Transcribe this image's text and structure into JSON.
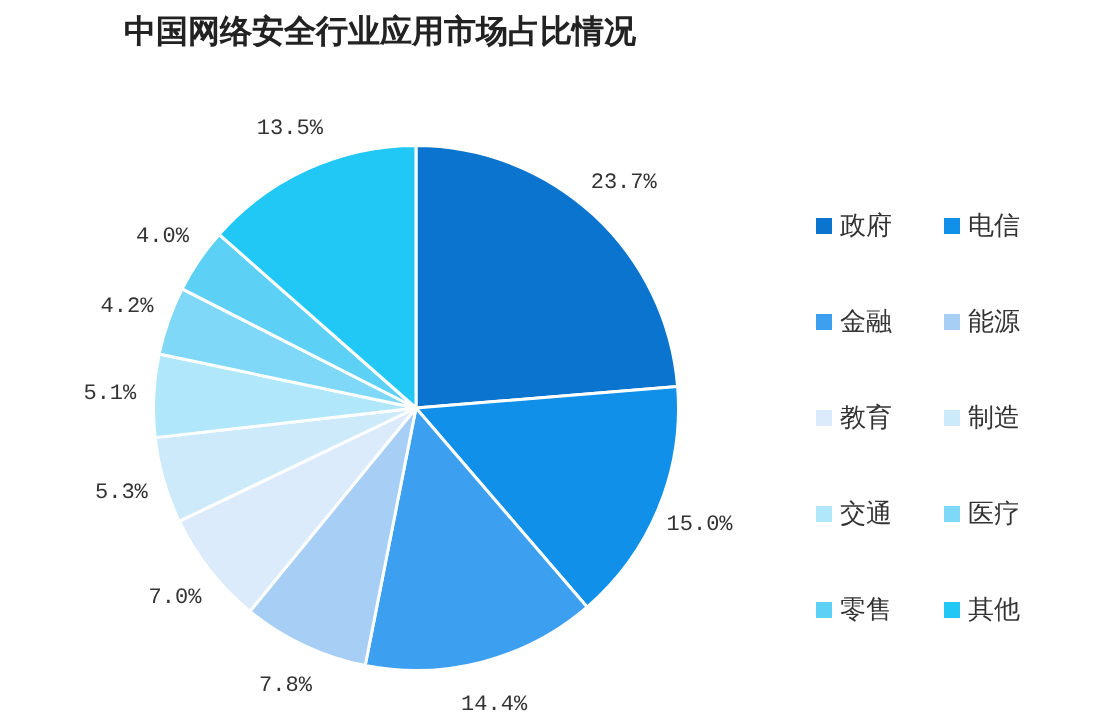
{
  "chart_data": {
    "type": "pie",
    "title": "中国网络安全行业应用市场占比情况",
    "categories": [
      "政府",
      "电信",
      "金融",
      "能源",
      "教育",
      "制造",
      "交通",
      "医疗",
      "零售",
      "其他"
    ],
    "values": [
      23.7,
      15.0,
      14.4,
      7.8,
      7.0,
      5.3,
      5.1,
      4.2,
      4.0,
      13.5
    ],
    "value_labels": [
      "23.7%",
      "15.0%",
      "14.4%",
      "7.8%",
      "7.0%",
      "5.3%",
      "5.1%",
      "4.2%",
      "4.0%",
      "13.5%"
    ],
    "colors": [
      "#0a74cf",
      "#1190ea",
      "#3d9ff0",
      "#a7cff5",
      "#dcebfb",
      "#cdeafb",
      "#b0e7fb",
      "#7fd8f7",
      "#5dd0f5",
      "#22c8f5"
    ],
    "legend": "right"
  }
}
